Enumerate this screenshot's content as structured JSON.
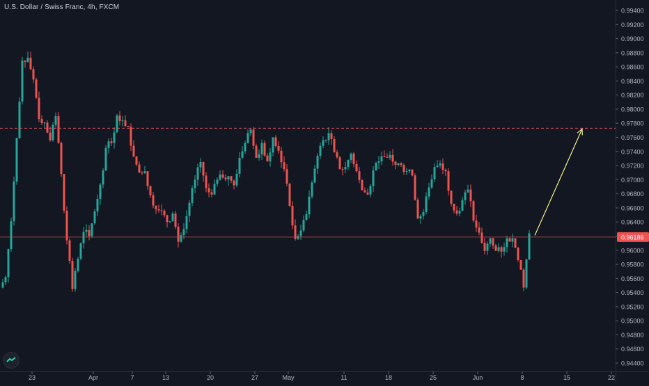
{
  "header": {
    "symbol_title": "U.S. Dollar / Swiss Franc, 4h, FXCM"
  },
  "colors": {
    "background": "#131722",
    "up": "#26a69a",
    "down": "#ef5350",
    "resistance_line": "#e05050",
    "current_price_line": "#d84a4a",
    "arrow": "#f5f08a",
    "axis_text": "#b2b5be",
    "price_badge_bg": "#f05350",
    "price_badge_text": "#ffffff"
  },
  "current_price_label": "0.96186",
  "chart_data": {
    "type": "candlestick",
    "title": "U.S. Dollar / Swiss Franc, 4h, FXCM",
    "xlabel": "",
    "ylabel": "",
    "ylim": [
      0.9435,
      0.9955
    ],
    "grid": false,
    "y_ticks": [
      "0.99400",
      "0.99200",
      "0.99000",
      "0.98800",
      "0.98600",
      "0.98400",
      "0.98200",
      "0.98000",
      "0.97800",
      "0.97600",
      "0.97400",
      "0.97200",
      "0.97000",
      "0.96800",
      "0.96600",
      "0.96400",
      "0.96200",
      "0.96000",
      "0.95800",
      "0.95600",
      "0.95400",
      "0.95200",
      "0.95000",
      "0.94800",
      "0.94600",
      "0.94400"
    ],
    "x_ticks": [
      {
        "label": "23",
        "i": 5
      },
      {
        "label": "Apr",
        "i": 16
      },
      {
        "label": "7",
        "i": 23
      },
      {
        "label": "13",
        "i": 29
      },
      {
        "label": "20",
        "i": 37
      },
      {
        "label": "27",
        "i": 45
      },
      {
        "label": "May",
        "i": 51
      },
      {
        "label": "11",
        "i": 61
      },
      {
        "label": "18",
        "i": 69
      },
      {
        "label": "25",
        "i": 77
      },
      {
        "label": "Jun",
        "i": 85
      },
      {
        "label": "8",
        "i": 93
      },
      {
        "label": "15",
        "i": 101
      },
      {
        "label": "22",
        "i": 109
      }
    ],
    "resistance_level": 0.9773,
    "current_price": 0.96186,
    "projection": {
      "from": {
        "i": 95.5,
        "price": 0.9621
      },
      "to": {
        "i": 104,
        "price": 0.9772
      }
    },
    "candles_per_bar": 1,
    "closes": [
      0.9562,
      0.9641,
      0.9759,
      0.9869,
      0.9873,
      0.9842,
      0.9786,
      0.9781,
      0.9756,
      0.979,
      0.9708,
      0.9614,
      0.9545,
      0.9588,
      0.9626,
      0.962,
      0.9655,
      0.9693,
      0.9745,
      0.9752,
      0.9791,
      0.9784,
      0.9775,
      0.9733,
      0.971,
      0.9712,
      0.9678,
      0.9658,
      0.9656,
      0.964,
      0.9652,
      0.9612,
      0.963,
      0.9667,
      0.97,
      0.9725,
      0.9688,
      0.9679,
      0.97,
      0.9703,
      0.9705,
      0.9692,
      0.9731,
      0.9752,
      0.9771,
      0.9731,
      0.9752,
      0.9726,
      0.976,
      0.9741,
      0.9715,
      0.9663,
      0.9616,
      0.9628,
      0.9651,
      0.9696,
      0.9734,
      0.9756,
      0.9766,
      0.9739,
      0.9715,
      0.9718,
      0.9737,
      0.9712,
      0.9685,
      0.9679,
      0.9713,
      0.9726,
      0.9732,
      0.9735,
      0.9721,
      0.9721,
      0.9712,
      0.9706,
      0.9645,
      0.9654,
      0.9689,
      0.9718,
      0.9723,
      0.9712,
      0.9666,
      0.9652,
      0.9671,
      0.9686,
      0.9642,
      0.9625,
      0.9599,
      0.9617,
      0.9599,
      0.9598,
      0.9617,
      0.9617,
      0.9586,
      0.9547,
      0.9624
    ]
  }
}
